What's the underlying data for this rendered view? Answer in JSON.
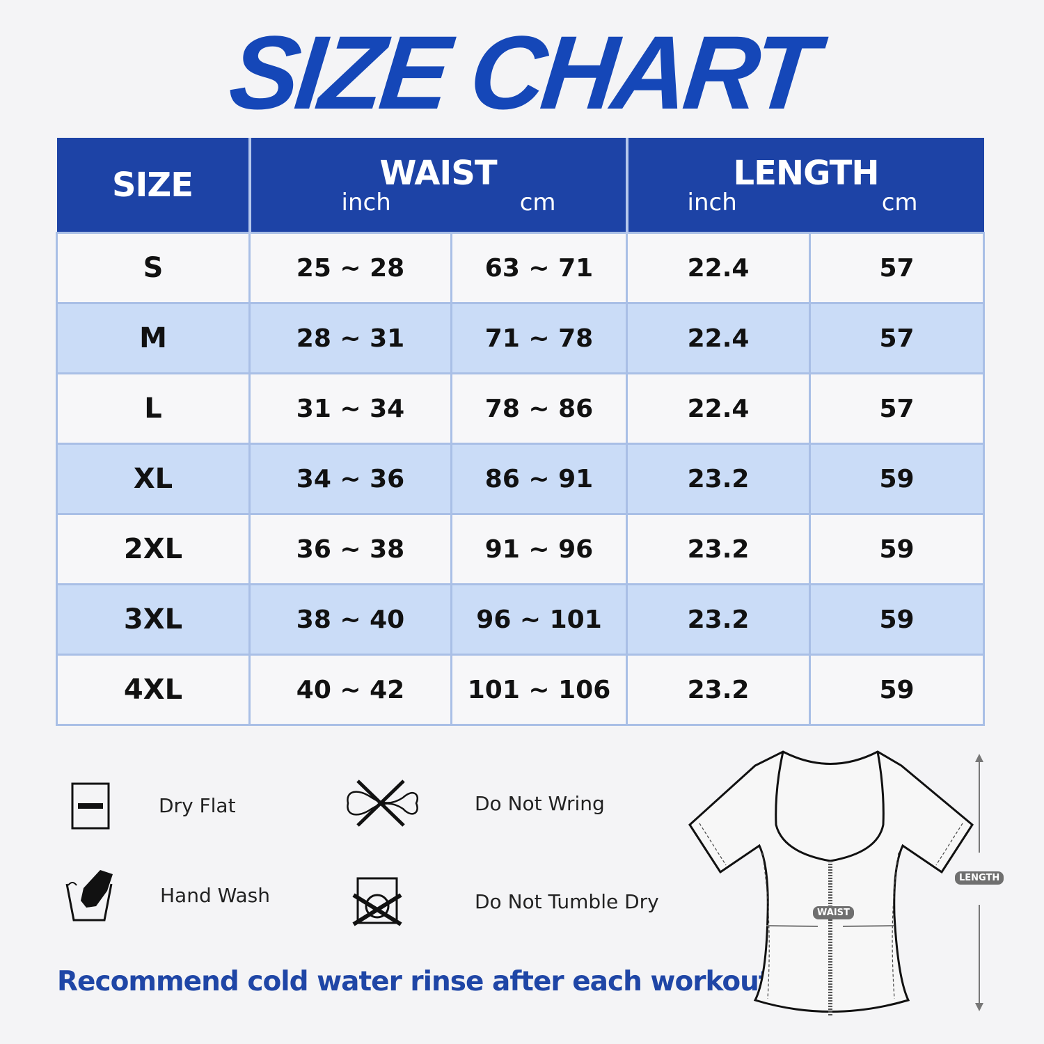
{
  "title": "SIZE CHART",
  "colors": {
    "brand_blue": "#1547b8",
    "header_bg": "#1d43a6",
    "row_alt": "#cadcf7"
  },
  "table": {
    "headers": {
      "size": "SIZE",
      "waist": "WAIST",
      "length": "LENGTH",
      "inch": "inch",
      "cm": "cm"
    },
    "rows": [
      {
        "size": "S",
        "waist_in": "25 ~ 28",
        "waist_cm": "63 ~ 71",
        "length_in": "22.4",
        "length_cm": "57"
      },
      {
        "size": "M",
        "waist_in": "28 ~ 31",
        "waist_cm": "71 ~ 78",
        "length_in": "22.4",
        "length_cm": "57"
      },
      {
        "size": "L",
        "waist_in": "31 ~ 34",
        "waist_cm": "78 ~ 86",
        "length_in": "22.4",
        "length_cm": "57"
      },
      {
        "size": "XL",
        "waist_in": "34 ~ 36",
        "waist_cm": "86 ~ 91",
        "length_in": "23.2",
        "length_cm": "59"
      },
      {
        "size": "2XL",
        "waist_in": "36 ~ 38",
        "waist_cm": "91 ~ 96",
        "length_in": "23.2",
        "length_cm": "59"
      },
      {
        "size": "3XL",
        "waist_in": "38 ~ 40",
        "waist_cm": "96 ~ 101",
        "length_in": "23.2",
        "length_cm": "59"
      },
      {
        "size": "4XL",
        "waist_in": "40 ~ 42",
        "waist_cm": "101 ~ 106",
        "length_in": "23.2",
        "length_cm": "59"
      }
    ]
  },
  "care": [
    {
      "label": "Dry Flat",
      "icon": "dry-flat-icon"
    },
    {
      "label": "Do Not Wring",
      "icon": "do-not-wring-icon"
    },
    {
      "label": "Hand Wash",
      "icon": "hand-wash-icon"
    },
    {
      "label": "Do Not Tumble Dry",
      "icon": "do-not-tumble-dry-icon"
    }
  ],
  "note": "Recommend cold water rinse after each workout.",
  "diagram": {
    "waist_label": "WAIST",
    "length_label": "LENGTH"
  }
}
